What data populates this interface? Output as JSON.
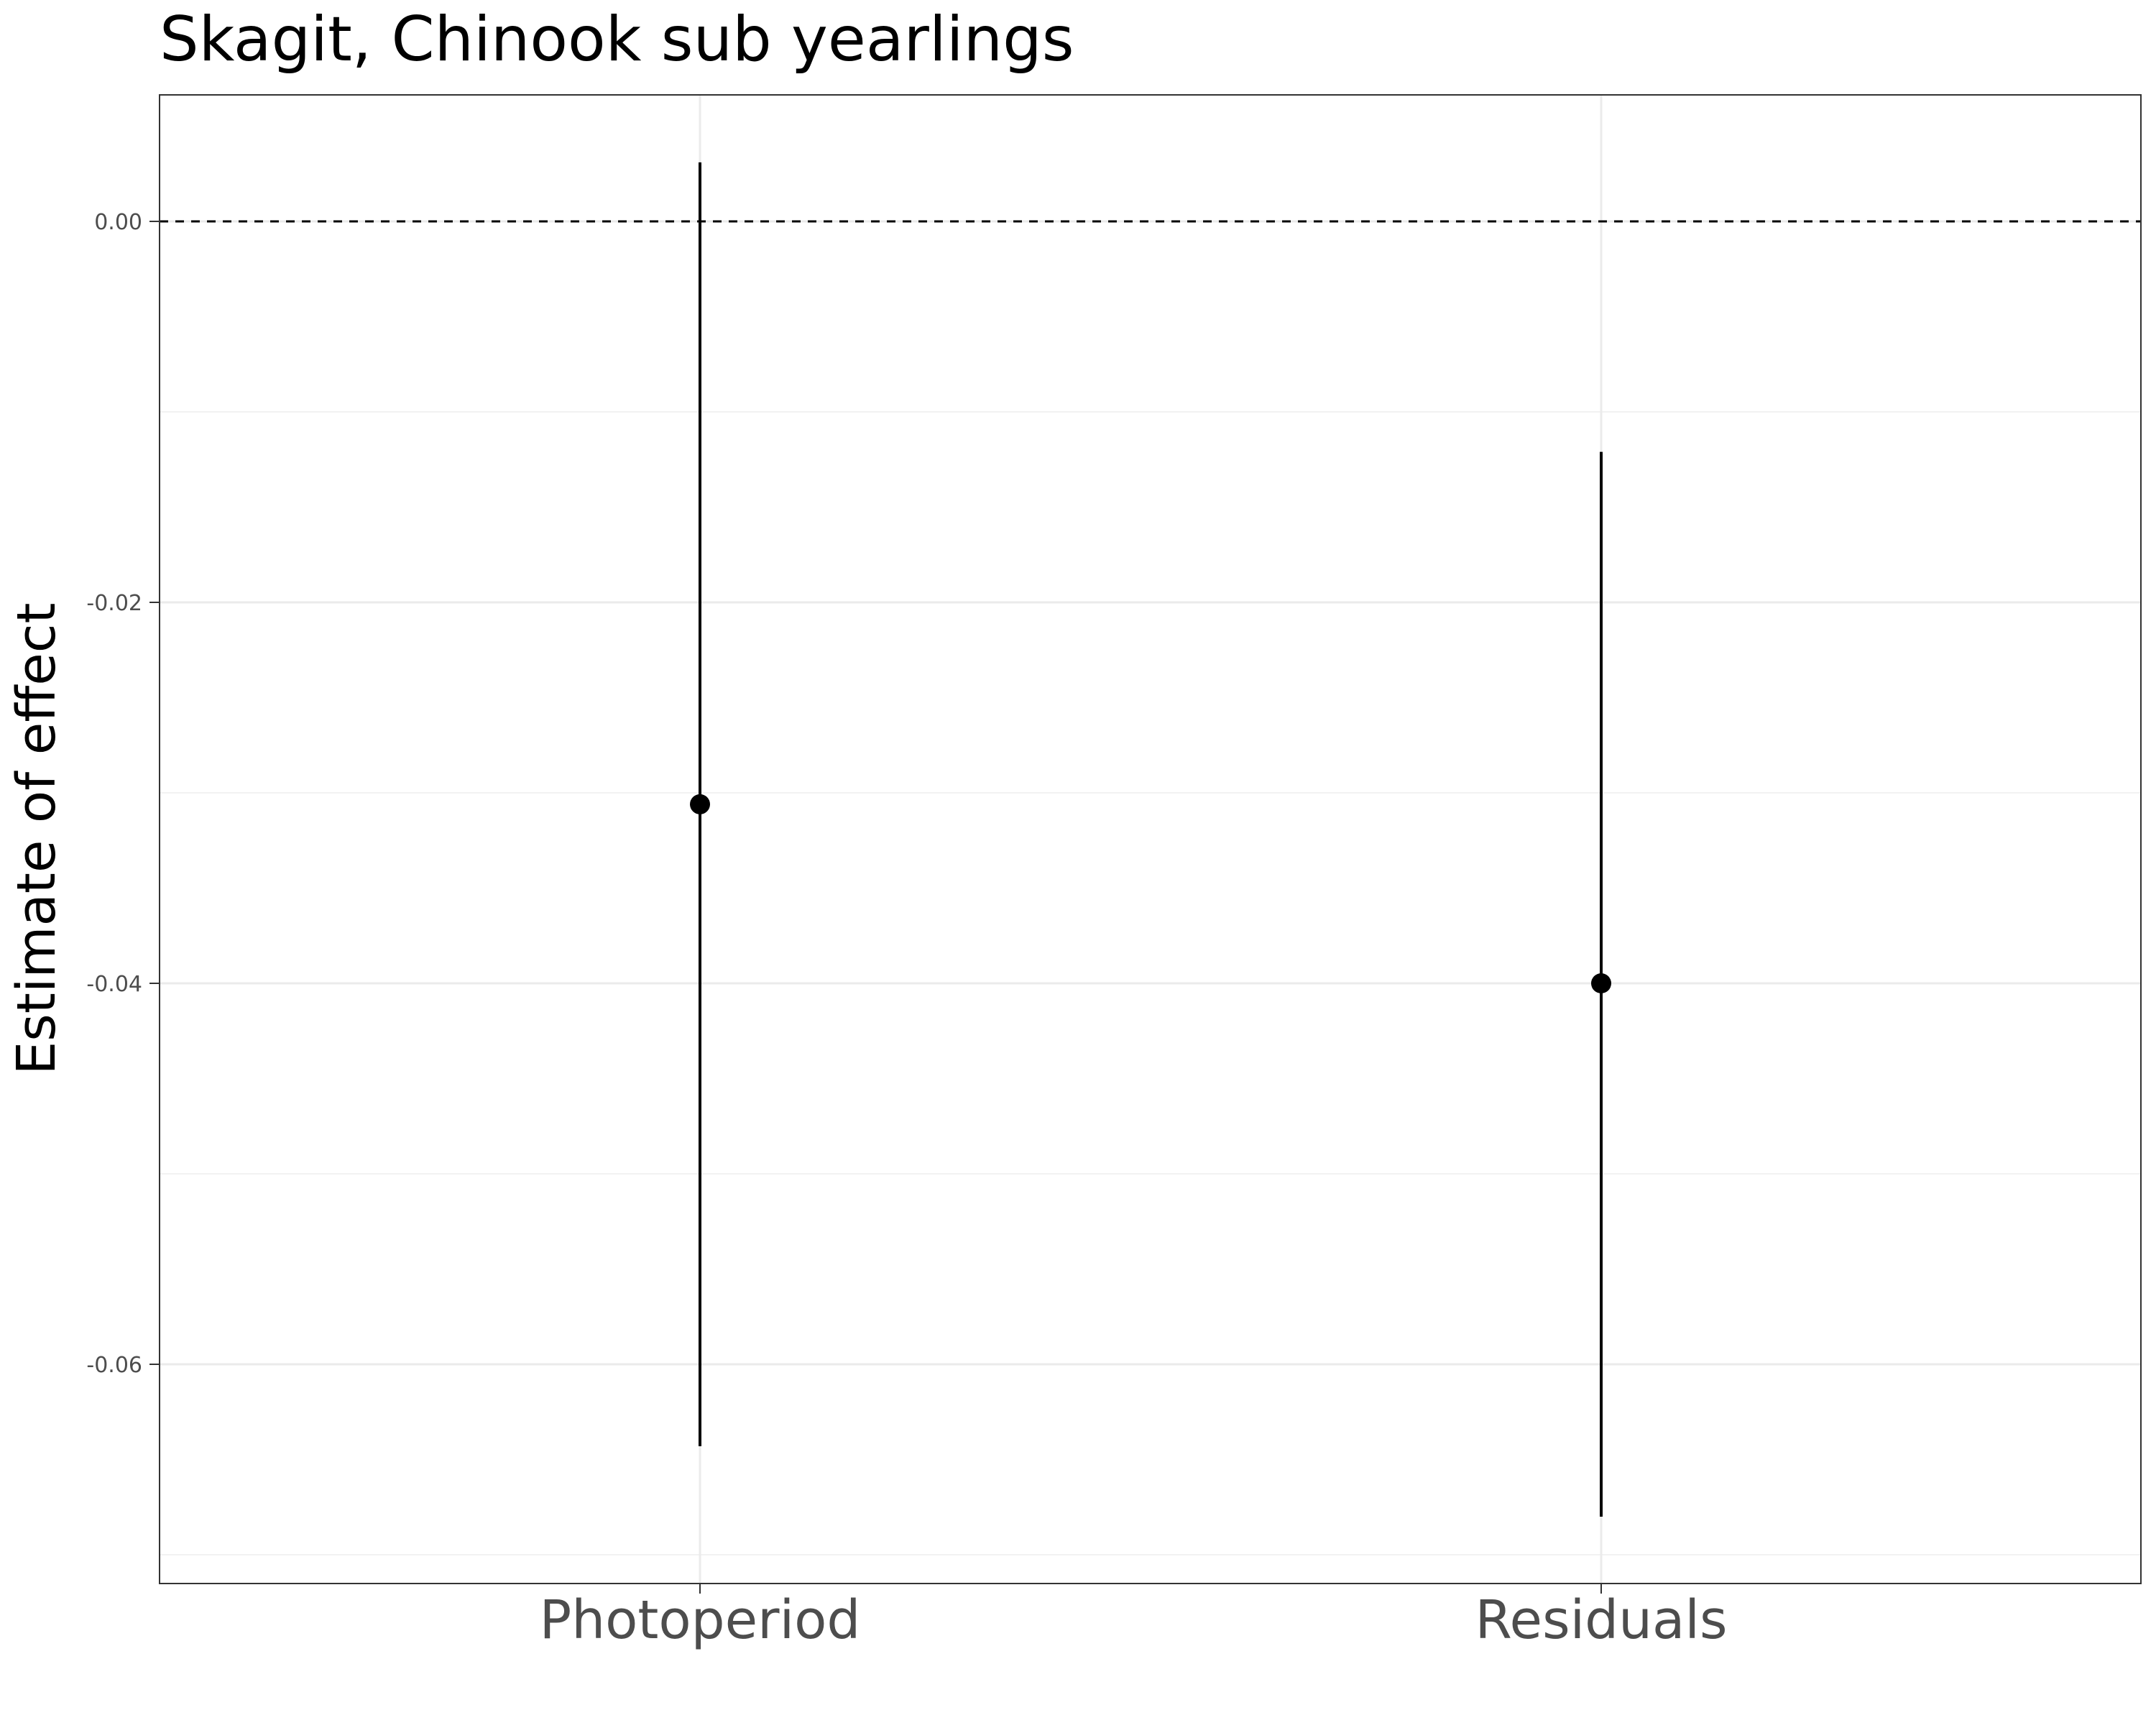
{
  "chart_data": {
    "type": "scatter",
    "title": "Skagit, Chinook sub yearlings",
    "xlabel": "",
    "ylabel": "Estimate of effect",
    "categories": [
      "Photoperiod",
      "Residuals"
    ],
    "series": [
      {
        "points": [
          {
            "x": "Photoperiod",
            "estimate": -0.0306,
            "lower": -0.0643,
            "upper": 0.0031
          },
          {
            "x": "Residuals",
            "estimate": -0.04,
            "lower": -0.068,
            "upper": -0.0121
          }
        ]
      }
    ],
    "y_ticks": [
      0.0,
      -0.02,
      -0.04,
      -0.06
    ],
    "y_tick_labels": [
      "0.00",
      "-0.02",
      "-0.04",
      "-0.06"
    ],
    "ylim": [
      -0.0714,
      0.0067
    ],
    "reference_line": {
      "y": 0,
      "style": "dashed"
    },
    "grid": true,
    "legend": "none",
    "colors": {
      "point": "#000000",
      "errorbar": "#000000",
      "grid_major": "#ebebeb",
      "grid_minor": "#f2f2f2",
      "panel_border": "#333333",
      "tick_label": "#4d4d4d",
      "title": "#000000"
    }
  }
}
